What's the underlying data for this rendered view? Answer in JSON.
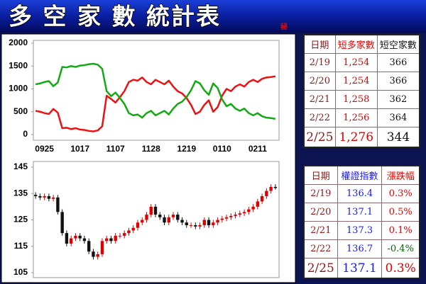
{
  "header": {
    "title": "多 空 家 數 統計表",
    "badge": "秘"
  },
  "chart_data": [
    {
      "type": "line",
      "categories": [
        null,
        null,
        "0925",
        null,
        null,
        null,
        null,
        null,
        null,
        null,
        "1017",
        null,
        null,
        null,
        null,
        null,
        null,
        null,
        "1107",
        null,
        null,
        null,
        null,
        null,
        null,
        null,
        "1128",
        null,
        null,
        null,
        null,
        null,
        null,
        null,
        "1219",
        null,
        null,
        null,
        null,
        null,
        null,
        null,
        "0110",
        null,
        null,
        null,
        null,
        null,
        null,
        null,
        "0211",
        null,
        null,
        null,
        null
      ],
      "series": [
        {
          "color": "#ee1111",
          "values": [
            520,
            500,
            470,
            450,
            560,
            480,
            140,
            150,
            120,
            140,
            110,
            100,
            80,
            70,
            90,
            180,
            850,
            780,
            700,
            820,
            950,
            1150,
            1200,
            1180,
            1250,
            1150,
            1100,
            1200,
            1150,
            1100,
            1180,
            1050,
            950,
            900,
            800,
            650,
            450,
            500,
            650,
            750,
            500,
            600,
            850,
            1000,
            950,
            1050,
            1100,
            1050,
            1150,
            1200,
            1150,
            1220,
            1250,
            1260,
            1276
          ]
        },
        {
          "color": "#11aa11",
          "values": [
            1100,
            1120,
            1150,
            1170,
            1060,
            1140,
            1480,
            1470,
            1500,
            1480,
            1510,
            1520,
            1540,
            1550,
            1530,
            1440,
            950,
            840,
            920,
            800,
            670,
            470,
            420,
            440,
            370,
            470,
            520,
            420,
            470,
            520,
            440,
            570,
            670,
            720,
            820,
            970,
            1170,
            1120,
            970,
            870,
            1120,
            1020,
            770,
            620,
            670,
            570,
            520,
            570,
            470,
            420,
            470,
            400,
            370,
            360,
            344
          ]
        }
      ],
      "ylim": [
        0,
        2000
      ],
      "yticks": [
        0,
        500,
        1000,
        1500,
        2000
      ]
    },
    {
      "type": "candlestick",
      "up_color": "#e00000",
      "down_color": "#111111",
      "open": [
        134.5,
        134,
        133.5,
        134,
        133,
        133.5,
        128,
        120,
        116,
        118,
        119,
        118,
        117,
        113,
        111,
        112,
        117,
        118,
        117,
        119,
        119,
        120,
        121,
        122,
        124,
        125,
        127,
        130,
        127,
        126,
        124,
        126,
        127,
        125,
        124,
        123,
        123,
        122.5,
        123,
        125,
        123,
        124,
        125,
        125.5,
        126,
        126.5,
        127,
        127.5,
        128,
        129,
        130,
        132,
        134,
        136,
        137.5
      ],
      "high": [
        135.5,
        135,
        135,
        135,
        134.5,
        134.5,
        129,
        121,
        119,
        120,
        120,
        119,
        118,
        114,
        113,
        118,
        119,
        119,
        120,
        120,
        121,
        122,
        123,
        125,
        126,
        128,
        131,
        131,
        128,
        127,
        127,
        128,
        128,
        126,
        125,
        124,
        124,
        124,
        126,
        126,
        125,
        126,
        126.5,
        127,
        127.5,
        128,
        128.5,
        129,
        130,
        131,
        133,
        135,
        137,
        138.5,
        138.5
      ],
      "low": [
        133,
        132.5,
        132.5,
        132,
        132,
        127,
        119,
        115,
        115,
        117,
        117,
        116,
        112,
        110,
        110,
        111,
        116,
        116,
        116,
        118,
        118,
        119,
        120,
        121,
        123,
        124,
        126,
        126,
        125,
        123,
        123,
        125,
        124,
        123,
        122,
        122,
        121.5,
        121.5,
        122,
        122,
        122,
        123,
        124,
        124.5,
        125,
        125.5,
        126,
        126.5,
        127,
        128,
        129,
        131,
        133,
        135,
        136.5
      ],
      "close": [
        134,
        133.5,
        134,
        133,
        133.5,
        128,
        120,
        116,
        118,
        119,
        118,
        117,
        113,
        111,
        112,
        117,
        118,
        117,
        119,
        119,
        120,
        121,
        122,
        124,
        125,
        127,
        130,
        127,
        126,
        124,
        126,
        127,
        125,
        124,
        123,
        123,
        122.5,
        123,
        125,
        123,
        124,
        125,
        125.5,
        126,
        126.5,
        127,
        127.5,
        128,
        129,
        130,
        132,
        134,
        136,
        137.5,
        137.1
      ],
      "ylim": [
        105,
        145
      ],
      "yticks": [
        105,
        115,
        125,
        135,
        145
      ]
    }
  ],
  "tables": [
    {
      "header": [
        "日期",
        "短多家數",
        "短空家數"
      ],
      "rows": [
        [
          "2/19",
          "1,254",
          "366"
        ],
        [
          "2/20",
          "1,254",
          "366"
        ],
        [
          "2/21",
          "1,258",
          "362"
        ],
        [
          "2/22",
          "1,256",
          "364"
        ],
        [
          "2/25",
          "1,276",
          "344"
        ]
      ]
    },
    {
      "header": [
        "日期",
        "權證指數",
        "漲跌幅"
      ],
      "rows": [
        [
          "2/19",
          "136.4",
          "0.3%"
        ],
        [
          "2/20",
          "137.1",
          "0.5%"
        ],
        [
          "2/21",
          "137.3",
          "0.1%"
        ],
        [
          "2/22",
          "136.7",
          "-0.4%"
        ],
        [
          "2/25",
          "137.1",
          "0.3%"
        ]
      ]
    }
  ]
}
